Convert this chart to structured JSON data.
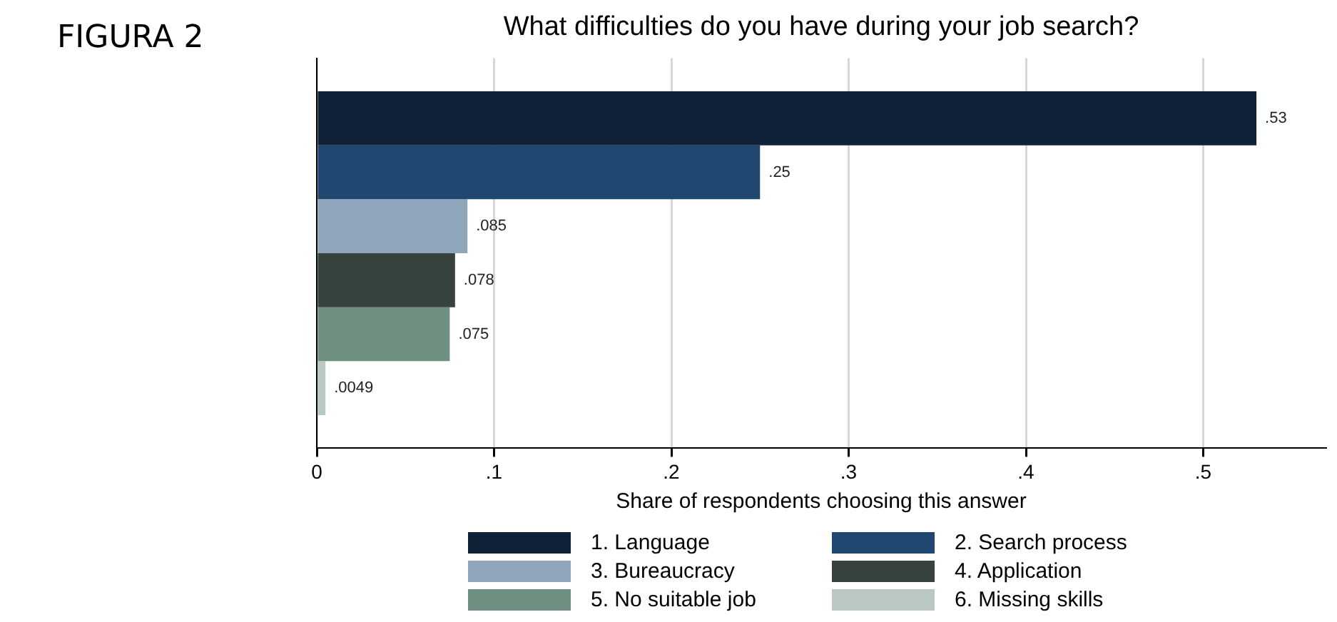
{
  "chart_data": {
    "type": "bar",
    "orientation": "horizontal",
    "title": "What difficulties do you have during your job search?",
    "xlabel": "Share of respondents choosing this answer",
    "annotations": [
      "FIGURA 2"
    ],
    "categories": [
      null
    ],
    "series": [
      {
        "name": "1. Language",
        "color": "#0f2238",
        "values": [
          0.53
        ],
        "value_labels": [
          ".53"
        ]
      },
      {
        "name": "2. Search process",
        "color": "#1f4770",
        "values": [
          0.25
        ],
        "value_labels": [
          ".25"
        ]
      },
      {
        "name": "3. Bureaucracy",
        "color": "#8fa6bc",
        "values": [
          0.085
        ],
        "value_labels": [
          ".085"
        ]
      },
      {
        "name": "4. Application",
        "color": "#36443d",
        "values": [
          0.078
        ],
        "value_labels": [
          ".078"
        ]
      },
      {
        "name": "5. No suitable job",
        "color": "#6f9080",
        "values": [
          0.075
        ],
        "value_labels": [
          ".075"
        ]
      },
      {
        "name": "6. Missing skills",
        "color": "#b9c8c0",
        "values": [
          0.0049
        ],
        "value_labels": [
          ".0049"
        ]
      }
    ],
    "xlim": [
      0,
      0.569
    ],
    "xticks": [
      0,
      {
        "value": 0.1,
        "label": ".1"
      },
      {
        "value": 0.2,
        "label": ".2"
      },
      {
        "value": 0.3,
        "label": ".3"
      },
      {
        "value": 0.4,
        "label": ".4"
      },
      {
        "value": 0.5,
        "label": ".5"
      }
    ],
    "grid": "x",
    "legend": "bottom",
    "tick_labels": "x"
  }
}
